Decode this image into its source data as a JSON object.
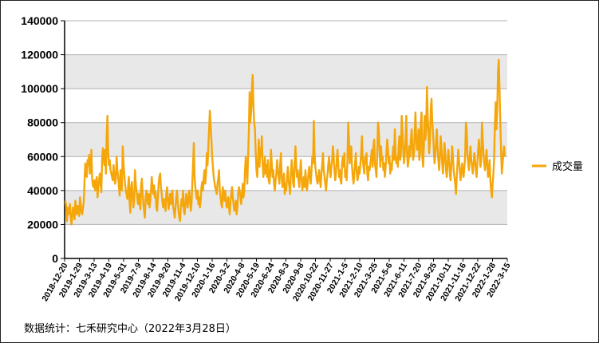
{
  "chart_data": {
    "type": "line",
    "series": [
      {
        "name": "成交量",
        "color": "#f5a60a",
        "y": [
          34000,
          30000,
          22000,
          30000,
          26000,
          28000,
          32000,
          24000,
          20000,
          25000,
          30000,
          27000,
          23000,
          34000,
          29000,
          26000,
          31000,
          28000,
          25000,
          36000,
          32000,
          27000,
          26000,
          30000,
          33000,
          45000,
          56000,
          52000,
          48000,
          58000,
          55000,
          61000,
          50000,
          53000,
          64000,
          47000,
          43000,
          42000,
          46000,
          40000,
          44000,
          48000,
          36000,
          42000,
          46000,
          50000,
          44000,
          39000,
          58000,
          65000,
          60000,
          55000,
          64000,
          50000,
          72000,
          84000,
          62000,
          55000,
          58000,
          52000,
          50000,
          48000,
          46000,
          55000,
          49000,
          44000,
          47000,
          60000,
          52000,
          48000,
          42000,
          37000,
          52000,
          45000,
          40000,
          66000,
          56000,
          50000,
          44000,
          40000,
          38000,
          35000,
          42000,
          48000,
          33000,
          27000,
          42000,
          45000,
          36000,
          30000,
          34000,
          52000,
          44000,
          40000,
          36000,
          32000,
          38000,
          34000,
          29000,
          42000,
          47000,
          38000,
          32000,
          28000,
          24000,
          36000,
          40000,
          35000,
          32000,
          38000,
          30000,
          34000,
          40000,
          48000,
          42000,
          38000,
          43000,
          36000,
          39000,
          30000,
          28000,
          36000,
          44000,
          48000,
          50000,
          42000,
          38000,
          33000,
          30000,
          35000,
          32000,
          28000,
          38000,
          42000,
          35000,
          29000,
          33000,
          38000,
          32000,
          36000,
          40000,
          30000,
          28000,
          24000,
          30000,
          36000,
          40000,
          33000,
          28000,
          24000,
          22000,
          30000,
          35000,
          31000,
          40000,
          28000,
          26000,
          32000,
          38000,
          34000,
          30000,
          36000,
          40000,
          34000,
          28000,
          32000,
          44000,
          55000,
          68000,
          48000,
          42000,
          38000,
          35000,
          40000,
          32000,
          36000,
          30000,
          34000,
          42000,
          45000,
          40000,
          48000,
          52000,
          44000,
          50000,
          62000,
          55000,
          66000,
          76000,
          87000,
          78000,
          70000,
          60000,
          54000,
          48000,
          45000,
          42000,
          40000,
          38000,
          44000,
          47000,
          52000,
          40000,
          36000,
          32000,
          30000,
          42000,
          38000,
          34000,
          40000,
          35000,
          30000,
          32000,
          36000,
          30000,
          26000,
          34000,
          38000,
          42000,
          36000,
          32000,
          28000,
          30000,
          34000,
          26000,
          30000,
          38000,
          42000,
          40000,
          36000,
          32000,
          38000,
          44000,
          36000,
          40000,
          52000,
          60000,
          52000,
          44000,
          60000,
          74000,
          98000,
          80000,
          86000,
          100000,
          108000,
          90000,
          80000,
          76000,
          62000,
          52000,
          48000,
          58000,
          70000,
          54000,
          65000,
          60000,
          72000,
          56000,
          48000,
          52000,
          60000,
          50000,
          55000,
          48000,
          58000,
          46000,
          44000,
          50000,
          64000,
          56000,
          48000,
          52000,
          44000,
          40000,
          46000,
          50000,
          58000,
          52000,
          48000,
          44000,
          56000,
          62000,
          48000,
          42000,
          46000,
          50000,
          38000,
          44000,
          40000,
          48000,
          54000,
          46000,
          42000,
          38000,
          50000,
          58000,
          52000,
          44000,
          42000,
          56000,
          66000,
          55000,
          48000,
          52000,
          46000,
          42000,
          50000,
          58000,
          48000,
          40000,
          44000,
          48000,
          42000,
          52000,
          46000,
          40000,
          44000,
          50000,
          54000,
          48000,
          44000,
          52000,
          60000,
          56000,
          81000,
          62000,
          54000,
          50000,
          46000,
          44000,
          48000,
          52000,
          46000,
          42000,
          50000,
          56000,
          62000,
          52000,
          48000,
          44000,
          40000,
          46000,
          50000,
          56000,
          60000,
          52000,
          48000,
          54000,
          58000,
          66000,
          60000,
          52000,
          46000,
          50000,
          58000,
          64000,
          56000,
          48000,
          52000,
          46000,
          44000,
          56000,
          60000,
          54000,
          62000,
          48000,
          52000,
          46000,
          58000,
          80000,
          70000,
          56000,
          60000,
          66000,
          54000,
          48000,
          44000,
          50000,
          56000,
          62000,
          52000,
          46000,
          48000,
          54000,
          50000,
          56000,
          62000,
          72000,
          58000,
          54000,
          50000,
          60000,
          56000,
          62000,
          50000,
          46000,
          54000,
          52000,
          56000,
          60000,
          64000,
          54000,
          66000,
          70000,
          56000,
          52000,
          48000,
          62000,
          80000,
          76000,
          64000,
          54000,
          66000,
          58000,
          60000,
          52000,
          56000,
          48000,
          54000,
          62000,
          70000,
          64000,
          56000,
          60000,
          50000,
          56000,
          52000,
          60000,
          66000,
          58000,
          76000,
          62000,
          56000,
          60000,
          54000,
          66000,
          72000,
          58000,
          62000,
          84000,
          74000,
          64000,
          56000,
          62000,
          70000,
          84000,
          62000,
          54000,
          58000,
          66000,
          60000,
          70000,
          76000,
          66000,
          58000,
          62000,
          74000,
          86000,
          70000,
          64000,
          68000,
          76000,
          58000,
          62000,
          80000,
          86000,
          60000,
          54000,
          66000,
          84000,
          70000,
          76000,
          101000,
          84000,
          74000,
          62000,
          70000,
          88000,
          94000,
          80000,
          74000,
          64000,
          56000,
          62000,
          70000,
          76000,
          64000,
          58000,
          52000,
          60000,
          72000,
          66000,
          56000,
          50000,
          58000,
          68000,
          62000,
          52000,
          48000,
          56000,
          64000,
          58000,
          50000,
          46000,
          56000,
          66000,
          60000,
          52000,
          48000,
          44000,
          38000,
          48000,
          56000,
          64000,
          58000,
          52000,
          46000,
          50000,
          56000,
          52000,
          48000,
          54000,
          60000,
          80000,
          76000,
          62000,
          56000,
          52000,
          60000,
          66000,
          58000,
          54000,
          50000,
          56000,
          62000,
          58000,
          52000,
          48000,
          56000,
          64000,
          70000,
          62000,
          54000,
          58000,
          80000,
          70000,
          62000,
          56000,
          52000,
          58000,
          64000,
          56000,
          48000,
          52000,
          58000,
          46000,
          40000,
          36000,
          44000,
          50000,
          60000,
          80000,
          92000,
          76000,
          88000,
          110000,
          117000,
          100000,
          80000,
          64000,
          50000,
          56000,
          62000,
          66000,
          60000
        ]
      }
    ],
    "x_ticks": [
      "2018-12-20",
      "2019-1-29",
      "2019-3-13",
      "2019-4-19",
      "2019-5-31",
      "2019-7-9",
      "2019-8-14",
      "2019-9-20",
      "2019-11-4",
      "2019-12-10",
      "2020-1-16",
      "2020-3-2",
      "2020-4-8",
      "2020-5-19",
      "2020-6-24",
      "2020-8-3",
      "2020-9-8",
      "2020-10-22",
      "2020-11-27",
      "2021-1-5",
      "2021-2-10",
      "2021-3-25",
      "2021-5-6",
      "2021-6-11",
      "2021-7-20",
      "2021-8-25",
      "2021-10-11",
      "2021-11-16",
      "2021-12-22",
      "2022-1-28",
      "2022-3-15"
    ],
    "y_ticks": [
      "0",
      "20000",
      "40000",
      "60000",
      "80000",
      "100000",
      "120000",
      "140000"
    ],
    "ylim": [
      0,
      140000
    ],
    "grid": true,
    "legend": "right",
    "line_color": "#f5a60a",
    "band_color": "#e8e8e8"
  },
  "source": "数据统计：七禾研究中心（2022年3月28日）"
}
